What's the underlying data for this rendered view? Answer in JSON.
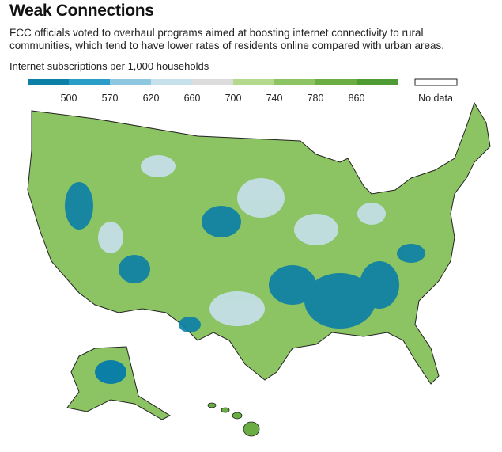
{
  "header": {
    "title": "Weak Connections",
    "subtitle": "FCC officials voted to overhaul programs aimed at boosting internet connectivity to rural communities, which tend to have lower rates of residents online compared with urban areas."
  },
  "legend": {
    "title": "Internet subscriptions per 1,000 households",
    "colors": [
      "#0b7fa6",
      "#2a9cc8",
      "#8ec7e0",
      "#c6e0ec",
      "#dcdcdc",
      "#b4d88c",
      "#8cc463",
      "#6aae43",
      "#4e9a33"
    ],
    "ticks": [
      500,
      570,
      620,
      660,
      700,
      740,
      780,
      860
    ],
    "no_data": "No data"
  }
}
